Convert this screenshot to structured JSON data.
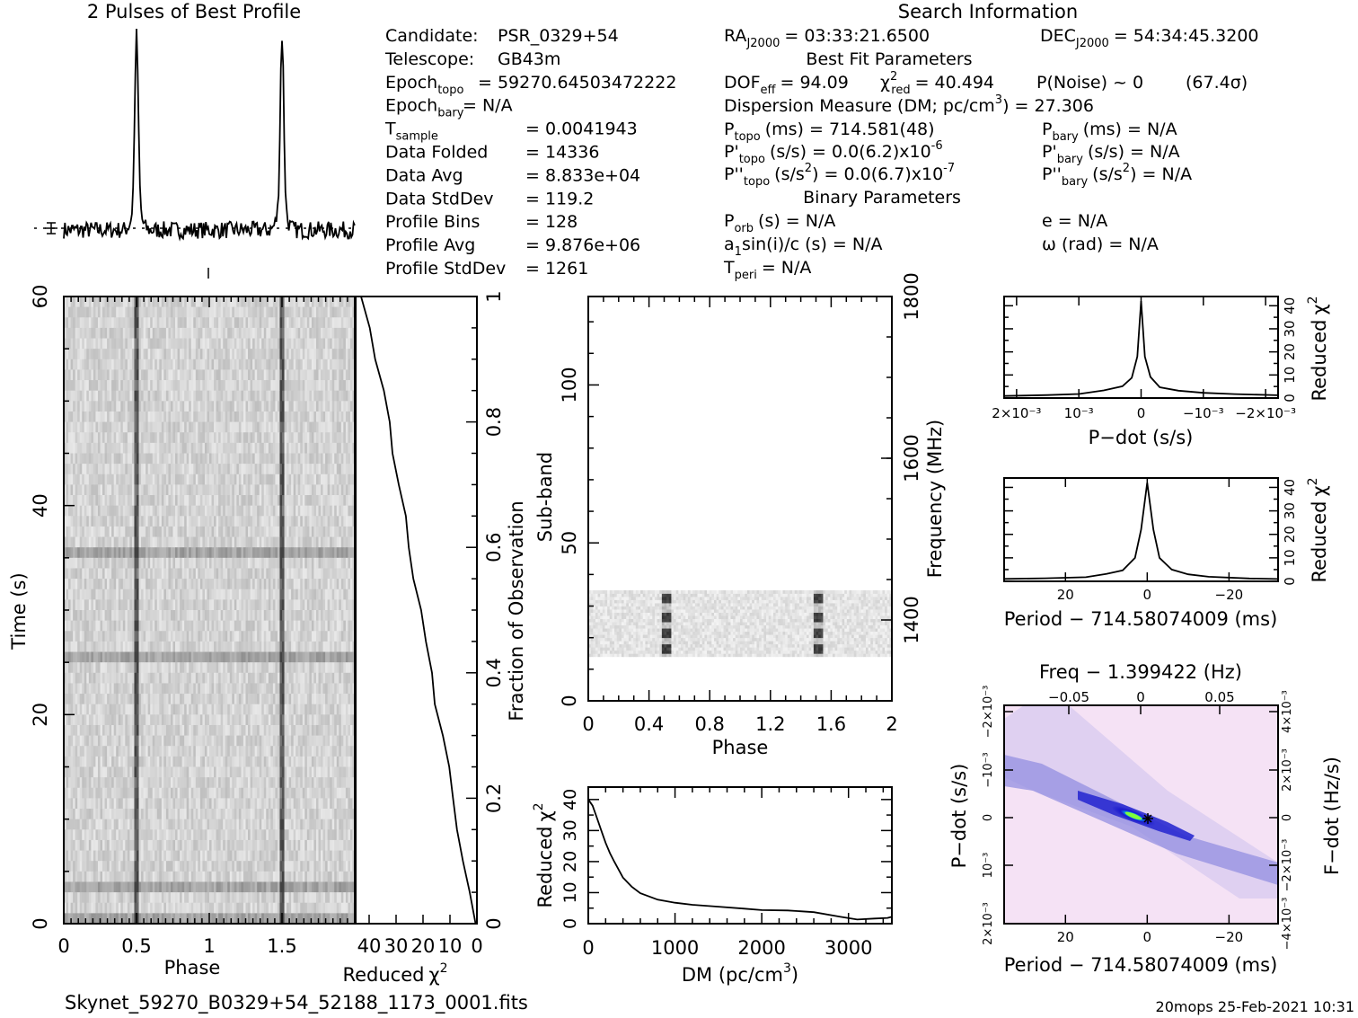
{
  "header": {
    "profile_title": "2 Pulses of Best Profile",
    "search_title": "Search Information",
    "best_fit_title": "Best Fit Parameters",
    "binary_title": "Binary Parameters"
  },
  "info_left": [
    {
      "label": "Candidate:",
      "value": "PSR_0329+54"
    },
    {
      "label": "Telescope:",
      "value": "GB43m"
    },
    {
      "label": "Epoch",
      "sub": "topo",
      "value": "= 59270.64503472222"
    },
    {
      "label": "Epoch",
      "sub": "bary",
      "value": "= N/A"
    },
    {
      "label": "T",
      "sub": "sample",
      "value": "=   0.0041943"
    },
    {
      "label": "Data Folded",
      "value": "=   14336"
    },
    {
      "label": "Data Avg",
      "value": "=   8.833e+04"
    },
    {
      "label": "Data StdDev",
      "value": "=   119.2"
    },
    {
      "label": "Profile Bins",
      "value": "=   128"
    },
    {
      "label": "Profile Avg",
      "value": "=   9.876e+06"
    },
    {
      "label": "Profile StdDev",
      "value": "=   1261"
    }
  ],
  "info_right": {
    "ra_label": "RA",
    "ra_sub": "J2000",
    "ra_value": "= 03:33:21.6500",
    "dec_label": "DEC",
    "dec_sub": "J2000",
    "dec_value": "= 54:34:45.3200",
    "dof_label": "DOF",
    "dof_sub": "eff",
    "dof_value": "= 94.09",
    "chi_label": "χ",
    "chi_sup": "2",
    "chi_sub": "red",
    "chi_value": "= 40.494",
    "pnoise": "P(Noise) ~ 0",
    "sigma": "(67.4σ)",
    "dm_text": "Dispersion Measure (DM; pc/cm",
    "dm_sup": "3",
    "dm_value": ") = 27.306",
    "ptopo_label": "P",
    "ptopo_sub": "topo",
    "ptopo_value": "(ms) =  714.581(48)",
    "pdtopo_label": "P'",
    "pdtopo_sub": "topo",
    "pdtopo_value": "(s/s) = 0.0(6.2)x10",
    "pdtopo_exp": "-6",
    "pddtopo_label": "P''",
    "pddtopo_sub": "topo",
    "pddtopo_value": "(s/s",
    "pddtopo_unit_sup": "2",
    "pddtopo_value2": ") = 0.0(6.7)x10",
    "pddtopo_exp": "-7",
    "pbary_label": "P",
    "pbary_sub": "bary",
    "pbary_value": "(ms) = N/A",
    "pdbary_label": "P'",
    "pdbary_sub": "bary",
    "pdbary_value": "(s/s) = N/A",
    "pddbary_label": "P''",
    "pddbary_sub": "bary",
    "pddbary_value": "(s/s",
    "pddbary_unit_sup": "2",
    "pddbary_value2": ") = N/A",
    "porb_label": "P",
    "porb_sub": "orb",
    "porb_value": "(s) = N/A",
    "a1_label": "a",
    "a1_sub": "1",
    "a1_value": "sin(i)/c (s) = N/A",
    "tperi_label": "T",
    "tperi_sub": "peri",
    "tperi_value": "= N/A",
    "e_value": "e = N/A",
    "omega_value": "ω (rad) = N/A"
  },
  "footer": {
    "filename": "Skynet_59270_B0329+54_52188_1173_0001.fits",
    "stamp": "20mops 25-Feb-2021 10:31"
  },
  "colors": {
    "ink": "#000000",
    "grayscale_dark": "#222222",
    "ppdot_bg": "#f4dcf4",
    "ppdot_blue": "#1a1acc",
    "ppdot_peak": "#7fff3a"
  },
  "chart_data": [
    {
      "id": "profile",
      "type": "line",
      "title": "2 Pulses of Best Profile",
      "x_range": [
        0,
        2
      ],
      "peaks_at_phase": [
        0.5,
        1.5
      ],
      "baseline": 0.0,
      "peak_height": 1.0
    },
    {
      "id": "time_phase",
      "type": "heatmap",
      "xlabel": "Phase",
      "ylabel": "Time (s)",
      "xlim": [
        0,
        2
      ],
      "ylim": [
        0,
        60
      ],
      "x_ticks": [
        "0",
        "0.5",
        "1",
        "1.5"
      ],
      "y_ticks": [
        "0",
        "20",
        "40",
        "60"
      ],
      "pulse_phases": [
        0.5,
        1.5
      ]
    },
    {
      "id": "time_chi2",
      "type": "line",
      "xlabel": "Reduced",
      "xlabel_sym": "χ",
      "xlabel_sup": "2",
      "ylabel": "Fraction of Observation",
      "x_ticks": [
        "40",
        "30",
        "20",
        "10",
        "0"
      ],
      "y_ticks": [
        "0",
        "0.2",
        "0.4",
        "0.6",
        "0.8",
        "1"
      ],
      "xlim": [
        45,
        0
      ],
      "ylim": [
        0,
        1
      ],
      "fraction": [
        0.0,
        0.05,
        0.1,
        0.15,
        0.2,
        0.25,
        0.3,
        0.35,
        0.4,
        0.45,
        0.5,
        0.55,
        0.6,
        0.65,
        0.7,
        0.75,
        0.8,
        0.85,
        0.9,
        0.95,
        1.0
      ],
      "chi2": [
        0.5,
        2.5,
        5,
        7,
        9,
        11,
        13,
        15,
        17,
        19,
        21,
        23,
        25,
        27,
        29,
        31,
        33,
        35,
        37.5,
        40,
        43
      ]
    },
    {
      "id": "subband_phase",
      "type": "heatmap",
      "xlabel": "Phase",
      "ylabel": "Sub-band",
      "ylabel2": "Frequency (MHz)",
      "xlim": [
        0,
        2
      ],
      "ylim": [
        0,
        128
      ],
      "x_ticks": [
        "0",
        "0.4",
        "0.8",
        "1.2",
        "1.6",
        "2"
      ],
      "y_ticks": [
        "0",
        "50",
        "100"
      ],
      "y2_ticks": [
        "1400",
        "1600",
        "1800"
      ],
      "band_rows": [
        14,
        35
      ],
      "pulse_phases": [
        0.52,
        1.52
      ],
      "bright_rows": [
        16,
        21,
        26,
        32
      ]
    },
    {
      "id": "dm_chi2",
      "type": "line",
      "xlabel": "DM (pc/cm",
      "xlabel_sup": "3",
      "xlabel_end": ")",
      "ylabel": "Reduced",
      "ylabel_sym": "χ",
      "ylabel_sup": "2",
      "xlim": [
        0,
        3500
      ],
      "ylim": [
        0,
        44
      ],
      "x_ticks": [
        "0",
        "1000",
        "2000",
        "3000"
      ],
      "y_ticks": [
        "0",
        "10",
        "20",
        "30",
        "40"
      ],
      "x": [
        0,
        50,
        100,
        150,
        200,
        250,
        300,
        400,
        500,
        600,
        800,
        1000,
        1200,
        1500,
        1800,
        2000,
        2300,
        2600,
        2900,
        3100,
        3300,
        3450,
        3500
      ],
      "y": [
        40,
        38,
        34,
        30,
        26,
        23,
        20,
        15,
        12,
        10,
        8,
        7,
        6,
        5.5,
        5,
        4.5,
        4,
        3.5,
        2.5,
        1.5,
        1.5,
        2,
        2.5
      ]
    },
    {
      "id": "pdot_chi2",
      "type": "line",
      "xlabel": "P−dot (s/s)",
      "ylabel": "Reduced",
      "ylabel_sym": "χ",
      "ylabel_sup": "2",
      "x_ticks": [
        "2×10⁻³",
        "10⁻³",
        "0",
        "−10⁻³",
        "−2×10⁻³"
      ],
      "y_ticks": [
        "0",
        "10",
        "20",
        "30",
        "40"
      ],
      "xlim": [
        0.0022,
        -0.0022
      ],
      "ylim": [
        0,
        44
      ],
      "x": [
        0.0022,
        0.0015,
        0.001,
        0.0006,
        0.0003,
        0.00015,
        6e-05,
        0,
        -6e-05,
        -0.00015,
        -0.0003,
        -0.0006,
        -0.001,
        -0.0015,
        -0.0022
      ],
      "y": [
        1,
        1.5,
        2,
        3,
        5,
        9,
        18,
        42,
        18,
        9,
        5,
        3,
        2,
        1.5,
        1
      ]
    },
    {
      "id": "period_chi2",
      "type": "line",
      "xlabel": "Period − 714.58074009 (ms)",
      "ylabel": "Reduced",
      "ylabel_sym": "χ",
      "ylabel_sup": "2",
      "x_ticks": [
        "20",
        "0",
        "−20"
      ],
      "y_ticks": [
        "0",
        "10",
        "20",
        "30",
        "40"
      ],
      "xlim": [
        35,
        -32
      ],
      "ylim": [
        0,
        44
      ],
      "x": [
        35,
        25,
        15,
        10,
        6,
        3,
        1.5,
        0,
        -1.5,
        -3,
        -6,
        -10,
        -15,
        -25,
        -32
      ],
      "y": [
        1,
        1.5,
        2,
        3,
        5,
        10,
        22,
        42,
        22,
        10,
        5,
        3,
        2,
        1.5,
        1
      ]
    },
    {
      "id": "ppdot",
      "type": "heatmap",
      "top_label": "Freq − 1.399422 (Hz)",
      "xlabel": "Period − 714.58074009 (ms)",
      "ylabel": "P−dot (s/s)",
      "ylabel2": "F−dot (Hz/s)",
      "x_ticks": [
        "20",
        "0",
        "−20"
      ],
      "top_ticks": [
        "−0.05",
        "0",
        "0.05"
      ],
      "y_ticks": [
        "2×10⁻³",
        "10⁻³",
        "0",
        "−10⁻³",
        "−2×10⁻³"
      ],
      "y2_ticks": [
        "−4×10⁻³",
        "−2×10⁻³",
        "0",
        "2×10⁻³",
        "4×10⁻³"
      ],
      "best_fit": [
        0,
        0
      ]
    }
  ]
}
